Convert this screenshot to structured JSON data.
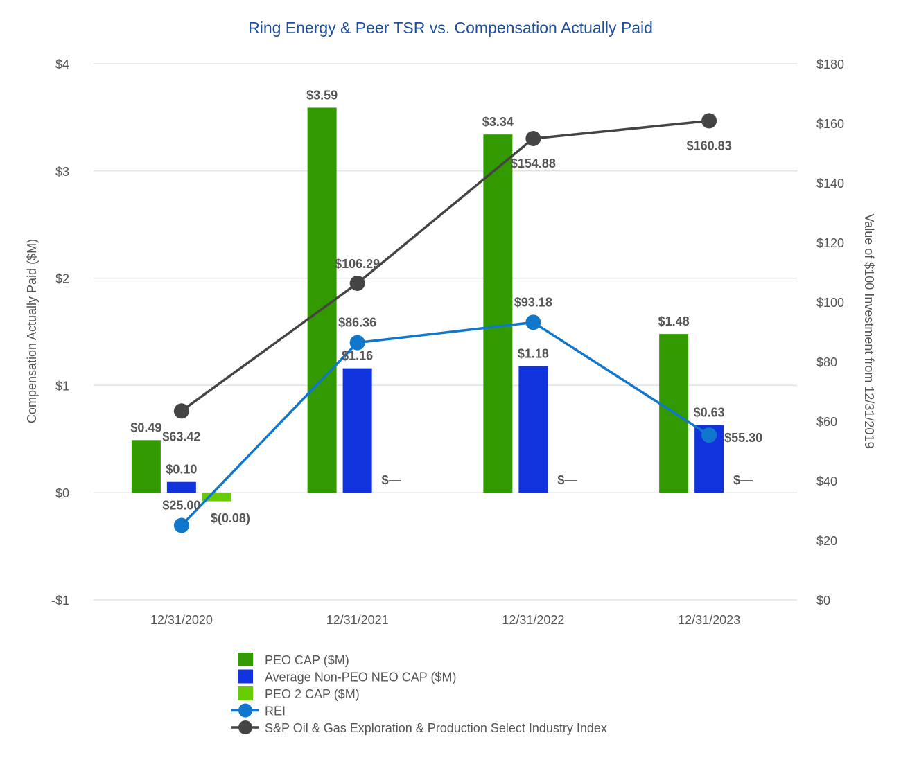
{
  "chart_data": {
    "type": "bar+line",
    "title": "Ring Energy & Peer TSR vs. Compensation Actually Paid",
    "categories": [
      "12/31/2020",
      "12/31/2021",
      "12/31/2022",
      "12/31/2023"
    ],
    "y_left": {
      "label": "Compensation Actually Paid ($M)",
      "range": [
        -1,
        4
      ],
      "ticks": [
        -1,
        0,
        1,
        2,
        3,
        4
      ],
      "tick_labels": [
        "-$1",
        "$0",
        "$1",
        "$2",
        "$3",
        "$4"
      ]
    },
    "y_right": {
      "label": "Value of $100 Investment from 12/31/2019",
      "range": [
        0,
        180
      ],
      "ticks": [
        0,
        20,
        40,
        60,
        80,
        100,
        120,
        140,
        160,
        180
      ],
      "tick_labels": [
        "$0",
        "$20",
        "$40",
        "$60",
        "$80",
        "$100",
        "$120",
        "$140",
        "$160",
        "$180"
      ]
    },
    "bar_series": [
      {
        "name": "PEO CAP ($M)",
        "color": "#339900",
        "values": [
          0.49,
          3.59,
          3.34,
          1.48
        ],
        "labels": [
          "$0.49",
          "$3.59",
          "$3.34",
          "$1.48"
        ]
      },
      {
        "name": "Average Non-PEO NEO CAP ($M)",
        "color": "#1133dd",
        "values": [
          0.1,
          1.16,
          1.18,
          0.63
        ],
        "labels": [
          "$0.10",
          "$1.16",
          "$1.18",
          "$0.63"
        ]
      },
      {
        "name": "PEO 2 CAP ($M)",
        "color": "#66cc00",
        "values": [
          -0.08,
          0,
          0,
          0
        ],
        "labels": [
          "$(0.08)",
          "$—",
          "$—",
          "$—"
        ]
      }
    ],
    "line_series": [
      {
        "name": "REI",
        "color": "#1177cc",
        "values": [
          25.0,
          86.36,
          93.18,
          55.3
        ],
        "labels": [
          "$25.00",
          "$86.36",
          "$93.18",
          "$55.30"
        ]
      },
      {
        "name": "S&P Oil & Gas Exploration & Production Select Industry Index",
        "color": "#444444",
        "values": [
          63.42,
          106.29,
          154.88,
          160.83
        ],
        "labels": [
          "$63.42",
          "$106.29",
          "$154.88",
          "$160.83"
        ]
      }
    ],
    "legend_position": "bottom"
  }
}
